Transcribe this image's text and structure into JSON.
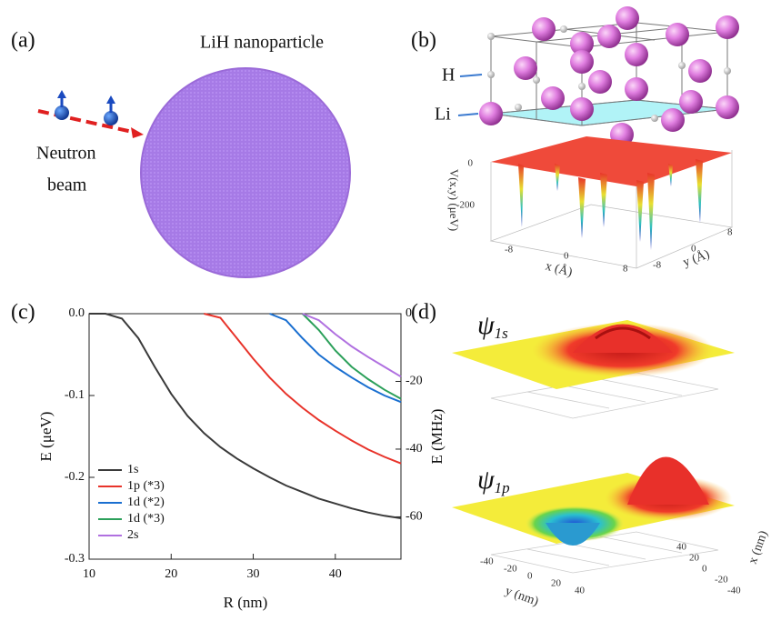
{
  "panel_a": {
    "label": "(a)",
    "title": "LiH nanoparticle",
    "beam_label": [
      "Neutron",
      "beam"
    ]
  },
  "panel_b": {
    "label": "(b)",
    "atom_labels": [
      "H",
      "Li"
    ],
    "z_label": "V(x,y) (μeV)",
    "z_ticks": [
      "0",
      "-200"
    ],
    "x_label": "x (Å)",
    "y_label": "y (Å)",
    "x_ticks": [
      "-8",
      "0",
      "8"
    ],
    "y_ticks": [
      "-8",
      "0",
      "8"
    ]
  },
  "panel_c": {
    "label": "(c)"
  },
  "panel_d": {
    "label": "(d)",
    "states": [
      {
        "symbol": "ψ",
        "sub": "1s"
      },
      {
        "symbol": "ψ",
        "sub": "1p"
      }
    ],
    "x_label": "x (nm)",
    "y_label": "y (nm)",
    "x_ticks": [
      "-40",
      "-20",
      "0",
      "20",
      "40"
    ],
    "y_ticks": [
      "-40",
      "-20",
      "0",
      "20",
      "40"
    ]
  },
  "chart_data": {
    "type": "line",
    "xlabel": "R  (nm)",
    "ylabel": "E  (μeV)",
    "y2label": "E  (MHz)",
    "x": [
      10,
      12,
      14,
      16,
      18,
      20,
      22,
      24,
      26,
      28,
      30,
      32,
      34,
      36,
      38,
      40,
      42,
      44,
      46,
      48
    ],
    "xlim": [
      10,
      48
    ],
    "xticks": [
      10,
      20,
      30,
      40
    ],
    "ylim": [
      -0.3,
      0
    ],
    "yticks": [
      {
        "value": 0,
        "label": "0.0"
      },
      -0.1,
      -0.2,
      -0.3
    ],
    "y2lim": [
      -72.5,
      0
    ],
    "y2ticks": [
      0,
      -20,
      -40,
      -60
    ],
    "legend": "lower left",
    "series": [
      {
        "name": "1s",
        "color": "#3a3a3a",
        "values": [
          0,
          0,
          -0.006,
          -0.03,
          -0.065,
          -0.098,
          -0.125,
          -0.146,
          -0.163,
          -0.177,
          -0.189,
          -0.2,
          -0.21,
          -0.218,
          -0.226,
          -0.232,
          -0.238,
          -0.243,
          -0.247,
          -0.25
        ]
      },
      {
        "name": "1p (*3)",
        "color": "#e8332a",
        "values": [
          null,
          null,
          null,
          null,
          null,
          null,
          null,
          0,
          -0.005,
          -0.03,
          -0.055,
          -0.078,
          -0.098,
          -0.115,
          -0.13,
          -0.143,
          -0.155,
          -0.166,
          -0.175,
          -0.183
        ]
      },
      {
        "name": "1d (*2)",
        "color": "#1a6fd0",
        "values": [
          null,
          null,
          null,
          null,
          null,
          null,
          null,
          null,
          null,
          null,
          null,
          0,
          -0.008,
          -0.03,
          -0.05,
          -0.065,
          -0.078,
          -0.09,
          -0.1,
          -0.108
        ]
      },
      {
        "name": "1d (*3)",
        "color": "#2ca05a",
        "values": [
          null,
          null,
          null,
          null,
          null,
          null,
          null,
          null,
          null,
          null,
          null,
          null,
          null,
          0,
          -0.02,
          -0.045,
          -0.065,
          -0.08,
          -0.093,
          -0.104
        ]
      },
      {
        "name": "2s",
        "color": "#b070e0",
        "values": [
          null,
          null,
          null,
          null,
          null,
          null,
          null,
          null,
          null,
          null,
          null,
          null,
          null,
          0,
          -0.008,
          -0.025,
          -0.04,
          -0.053,
          -0.065,
          -0.077
        ]
      }
    ]
  }
}
